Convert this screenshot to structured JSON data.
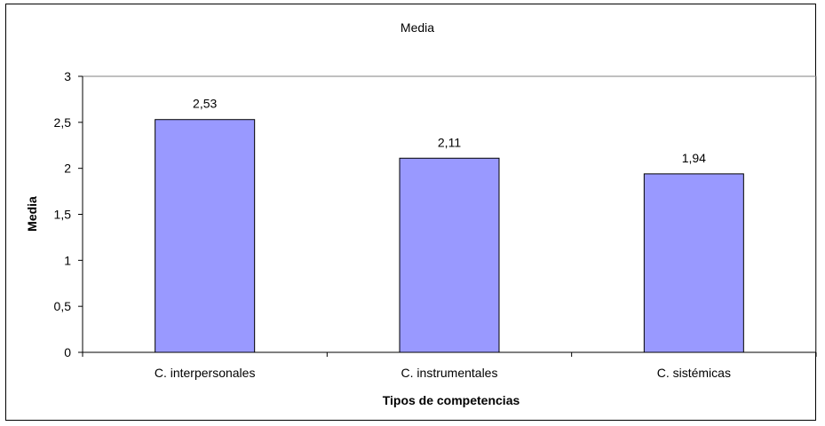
{
  "chart_data": {
    "type": "bar",
    "title": "Media",
    "xlabel": "Tipos de competencias",
    "ylabel": "Media",
    "categories": [
      "C. interpersonales",
      "C. instrumentales",
      "C. sistémicas"
    ],
    "values": [
      2.53,
      2.11,
      1.94
    ],
    "data_labels": [
      "2,53",
      "2,11",
      "1,94"
    ],
    "ylim": [
      0,
      3
    ],
    "yticks": [
      0,
      0.5,
      1,
      1.5,
      2,
      2.5,
      3
    ],
    "ytick_labels": [
      "0",
      "0,5",
      "1",
      "1,5",
      "2",
      "2,5",
      "3"
    ],
    "grid": false,
    "legend": "none",
    "colors": {
      "bar": "#9999ff",
      "bar_stroke": "#000000",
      "plot_border": "#808080"
    }
  }
}
